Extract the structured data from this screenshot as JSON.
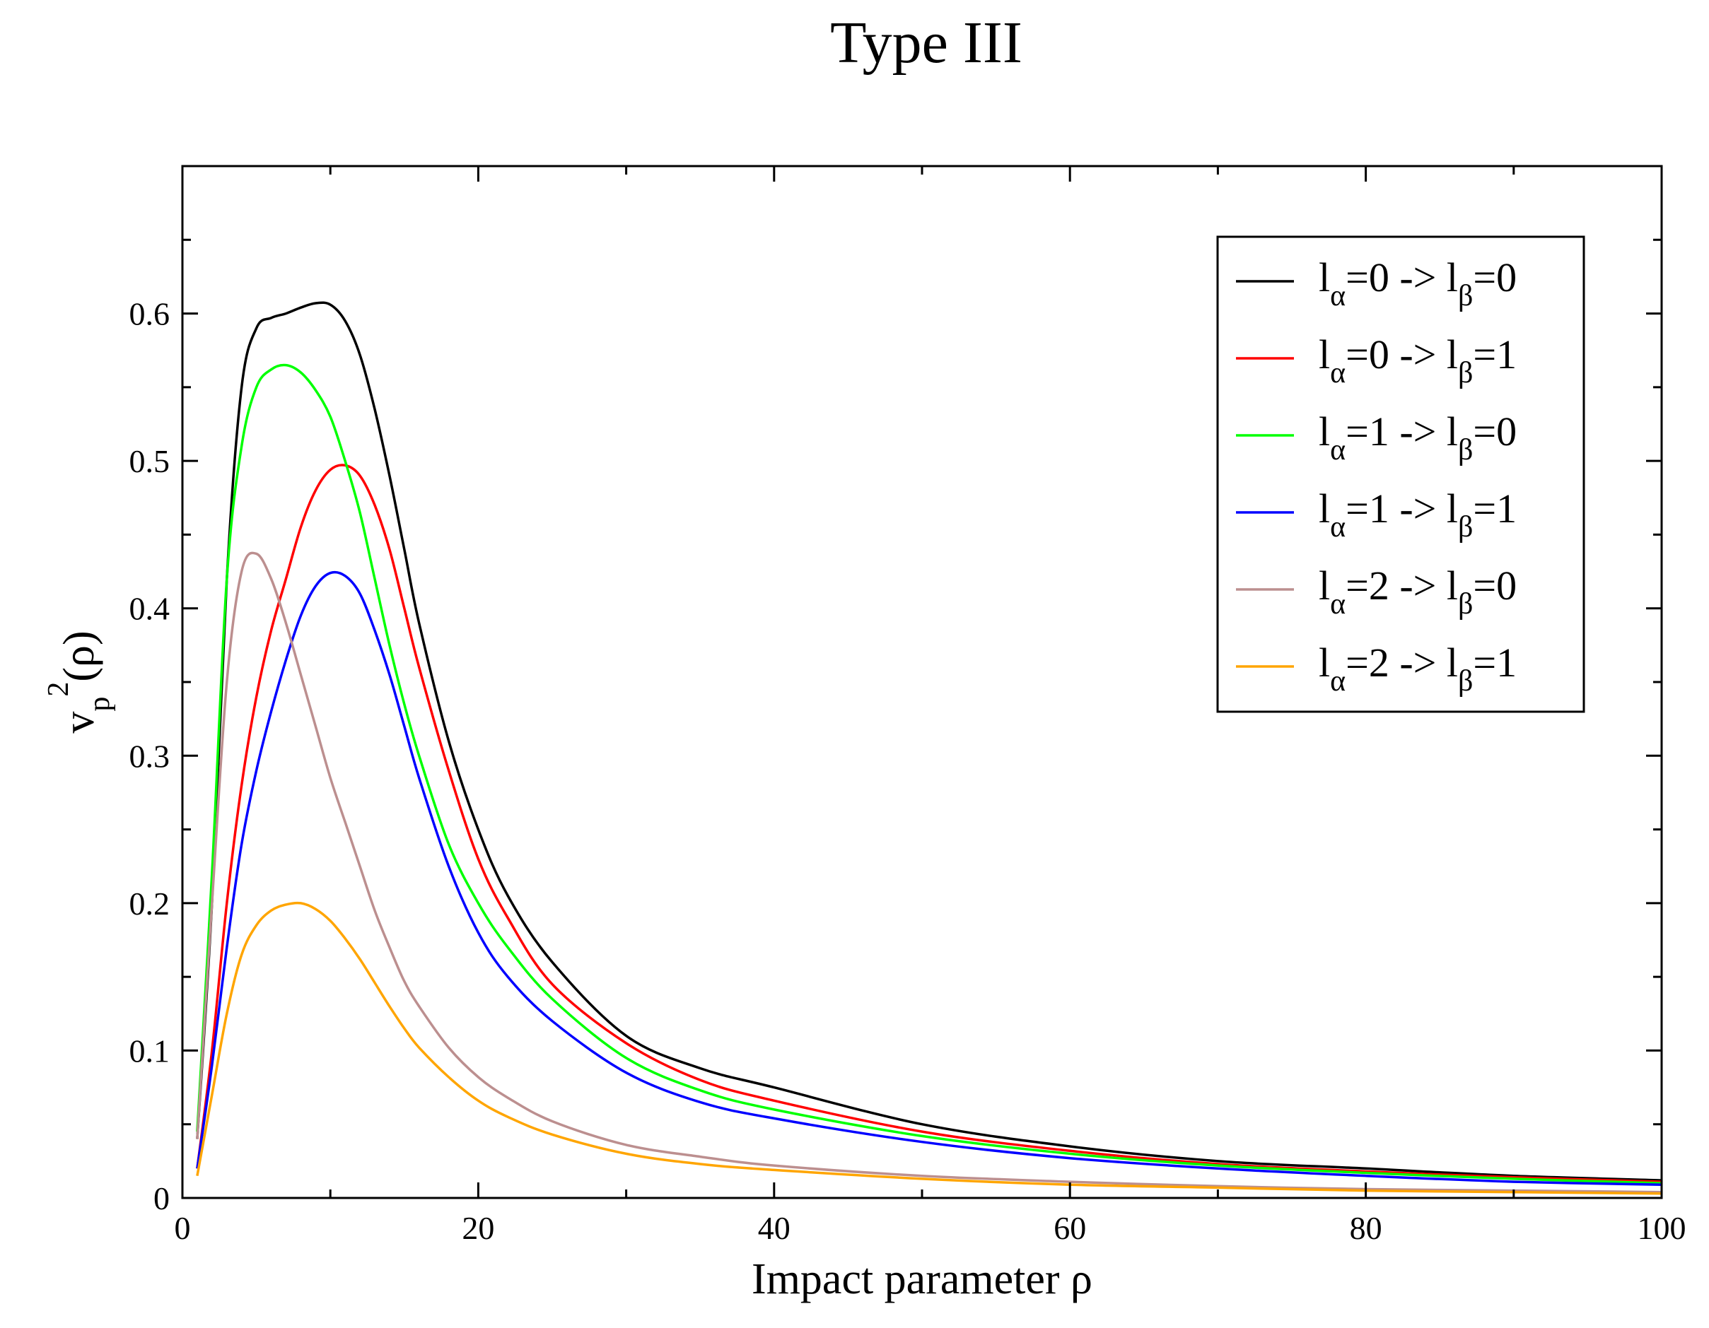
{
  "chart_data": {
    "type": "line",
    "title": "Type III",
    "xlabel": "Impact parameter ρ",
    "ylabel": {
      "base": "v",
      "subscript": "p",
      "superscript": "2",
      "suffix": "(ρ)"
    },
    "xlim": [
      0,
      100
    ],
    "ylim": [
      0,
      0.7
    ],
    "xticks": [
      0,
      20,
      40,
      60,
      80,
      100
    ],
    "xtick_labels": [
      "0",
      "20",
      "40",
      "60",
      "80",
      "100"
    ],
    "yticks": [
      0,
      0.1,
      0.2,
      0.3,
      0.4,
      0.5,
      0.6
    ],
    "ytick_labels": [
      "0",
      "0.1",
      "0.2",
      "0.3",
      "0.4",
      "0.5",
      "0.6"
    ],
    "grid": false,
    "legend_position": "top-right",
    "series": [
      {
        "name": "lα=0 -> lβ=0",
        "legend": {
          "l1": "l",
          "s1": "α",
          "m1": "=0 -> ",
          "l2": "l",
          "s2": "β",
          "m2": "=0"
        },
        "color": "#000000",
        "x": [
          1,
          2,
          3,
          4,
          5,
          6,
          7,
          8,
          9,
          10,
          11,
          12,
          13,
          14,
          15,
          16,
          18,
          20,
          22,
          25,
          30,
          35,
          40,
          50,
          60,
          70,
          80,
          90,
          100
        ],
        "y": [
          0.04,
          0.2,
          0.42,
          0.55,
          0.59,
          0.597,
          0.6,
          0.604,
          0.607,
          0.606,
          0.595,
          0.572,
          0.535,
          0.49,
          0.44,
          0.39,
          0.31,
          0.25,
          0.205,
          0.16,
          0.11,
          0.088,
          0.075,
          0.05,
          0.035,
          0.025,
          0.02,
          0.015,
          0.012
        ]
      },
      {
        "name": "lα=0 -> lβ=1",
        "legend": {
          "l1": "l",
          "s1": "α",
          "m1": "=0 -> ",
          "l2": "l",
          "s2": "β",
          "m2": "=1"
        },
        "color": "#ff0000",
        "x": [
          1,
          2,
          3,
          4,
          5,
          6,
          7,
          8,
          9,
          10,
          11,
          12,
          13,
          14,
          15,
          16,
          18,
          20,
          22,
          25,
          30,
          35,
          40,
          50,
          60,
          70,
          80,
          90,
          100
        ],
        "y": [
          0.02,
          0.1,
          0.2,
          0.28,
          0.34,
          0.385,
          0.42,
          0.455,
          0.48,
          0.494,
          0.497,
          0.49,
          0.47,
          0.44,
          0.4,
          0.36,
          0.29,
          0.23,
          0.19,
          0.145,
          0.105,
          0.08,
          0.066,
          0.045,
          0.032,
          0.023,
          0.018,
          0.014,
          0.011
        ]
      },
      {
        "name": "lα=1 -> lβ=0",
        "legend": {
          "l1": "l",
          "s1": "α",
          "m1": "=1 -> ",
          "l2": "l",
          "s2": "β",
          "m2": "=0"
        },
        "color": "#00ff00",
        "x": [
          1,
          2,
          3,
          4,
          5,
          6,
          7,
          8,
          9,
          10,
          11,
          12,
          13,
          14,
          15,
          16,
          18,
          20,
          22,
          25,
          30,
          35,
          40,
          50,
          60,
          70,
          80,
          90,
          100
        ],
        "y": [
          0.045,
          0.22,
          0.42,
          0.51,
          0.55,
          0.562,
          0.565,
          0.56,
          0.548,
          0.53,
          0.5,
          0.465,
          0.42,
          0.375,
          0.335,
          0.3,
          0.24,
          0.2,
          0.17,
          0.135,
          0.095,
          0.073,
          0.06,
          0.042,
          0.03,
          0.022,
          0.017,
          0.013,
          0.01
        ]
      },
      {
        "name": "lα=1 -> lβ=1",
        "legend": {
          "l1": "l",
          "s1": "α",
          "m1": "=1 -> ",
          "l2": "l",
          "s2": "β",
          "m2": "=1"
        },
        "color": "#0000ff",
        "x": [
          1,
          2,
          3,
          4,
          5,
          6,
          7,
          8,
          9,
          10,
          11,
          12,
          13,
          14,
          15,
          16,
          18,
          20,
          22,
          25,
          30,
          35,
          40,
          50,
          60,
          70,
          80,
          90,
          100
        ],
        "y": [
          0.02,
          0.09,
          0.17,
          0.24,
          0.29,
          0.33,
          0.365,
          0.395,
          0.415,
          0.424,
          0.422,
          0.41,
          0.385,
          0.355,
          0.32,
          0.285,
          0.225,
          0.18,
          0.15,
          0.12,
          0.085,
          0.065,
          0.054,
          0.038,
          0.027,
          0.02,
          0.015,
          0.011,
          0.009
        ]
      },
      {
        "name": "lα=2 -> lβ=0",
        "legend": {
          "l1": "l",
          "s1": "α",
          "m1": "=2 -> ",
          "l2": "l",
          "s2": "β",
          "m2": "=0"
        },
        "color": "#bc8f8f",
        "x": [
          1,
          2,
          3,
          4,
          5,
          6,
          7,
          8,
          9,
          10,
          11,
          12,
          13,
          14,
          15,
          16,
          18,
          20,
          22,
          25,
          30,
          35,
          40,
          50,
          60,
          70,
          80,
          90,
          100
        ],
        "y": [
          0.04,
          0.2,
          0.35,
          0.425,
          0.437,
          0.42,
          0.39,
          0.355,
          0.32,
          0.285,
          0.255,
          0.225,
          0.195,
          0.17,
          0.147,
          0.13,
          0.102,
          0.082,
          0.068,
          0.052,
          0.036,
          0.028,
          0.022,
          0.015,
          0.011,
          0.008,
          0.006,
          0.005,
          0.004
        ]
      },
      {
        "name": "lα=2 -> lβ=1",
        "legend": {
          "l1": "l",
          "s1": "α",
          "m1": "=2 -> ",
          "l2": "l",
          "s2": "β",
          "m2": "=1"
        },
        "color": "#ffa500",
        "x": [
          1,
          2,
          3,
          4,
          5,
          6,
          7,
          8,
          9,
          10,
          11,
          12,
          13,
          14,
          15,
          16,
          18,
          20,
          22,
          25,
          30,
          35,
          40,
          50,
          60,
          70,
          80,
          90,
          100
        ],
        "y": [
          0.015,
          0.07,
          0.125,
          0.165,
          0.185,
          0.195,
          0.199,
          0.2,
          0.196,
          0.188,
          0.176,
          0.162,
          0.146,
          0.13,
          0.115,
          0.102,
          0.082,
          0.066,
          0.055,
          0.043,
          0.03,
          0.023,
          0.019,
          0.013,
          0.009,
          0.007,
          0.005,
          0.004,
          0.003
        ]
      }
    ]
  }
}
